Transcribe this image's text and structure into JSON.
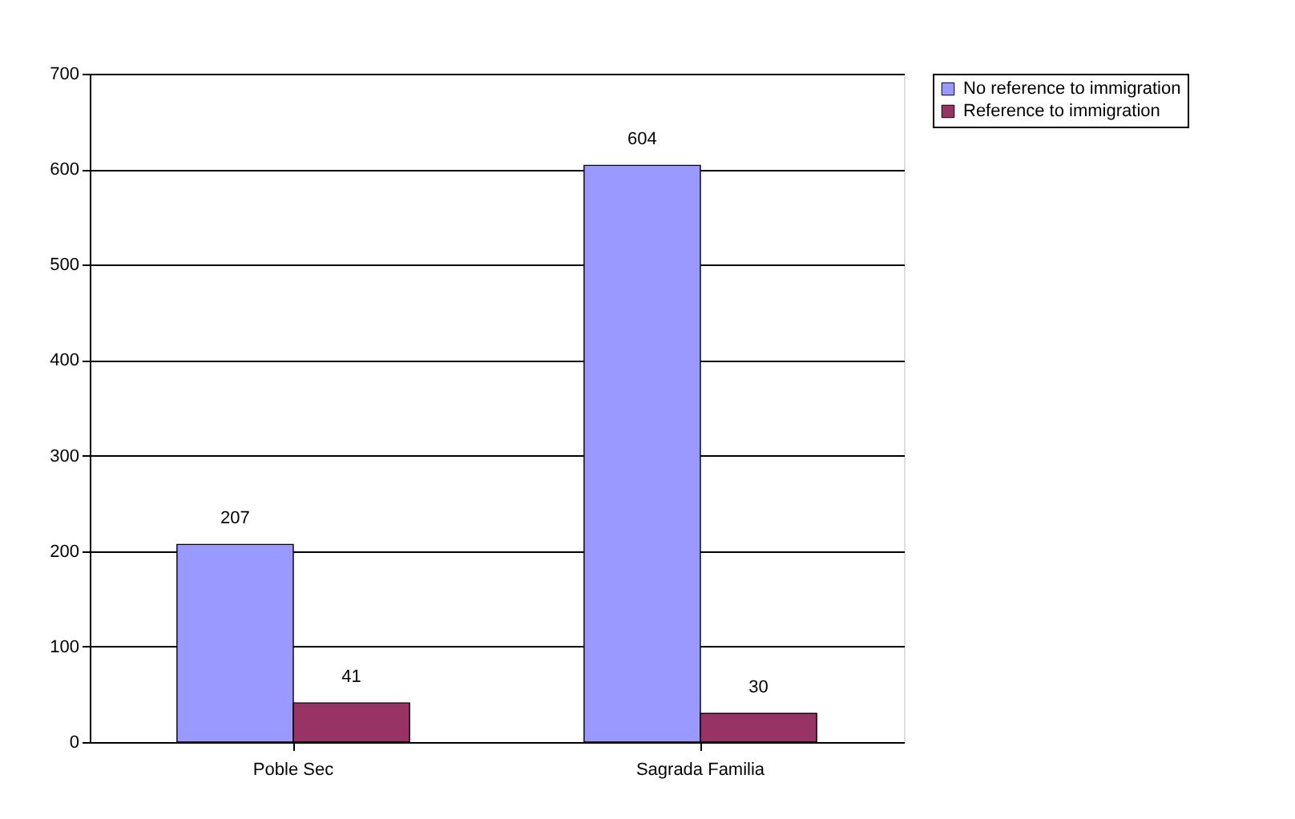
{
  "chart_data": {
    "type": "bar",
    "categories": [
      "Poble Sec",
      "Sagrada Familia"
    ],
    "series": [
      {
        "name": "No reference to immigration",
        "color": "#9999ff",
        "values": [
          207,
          604
        ]
      },
      {
        "name": "Reference to immigration",
        "color": "#993366",
        "values": [
          41,
          30
        ]
      }
    ],
    "ylim": [
      0,
      700
    ],
    "yticks": [
      0,
      100,
      200,
      300,
      400,
      500,
      600,
      700
    ],
    "grid": "y",
    "legend": "right",
    "data_labels": true
  }
}
